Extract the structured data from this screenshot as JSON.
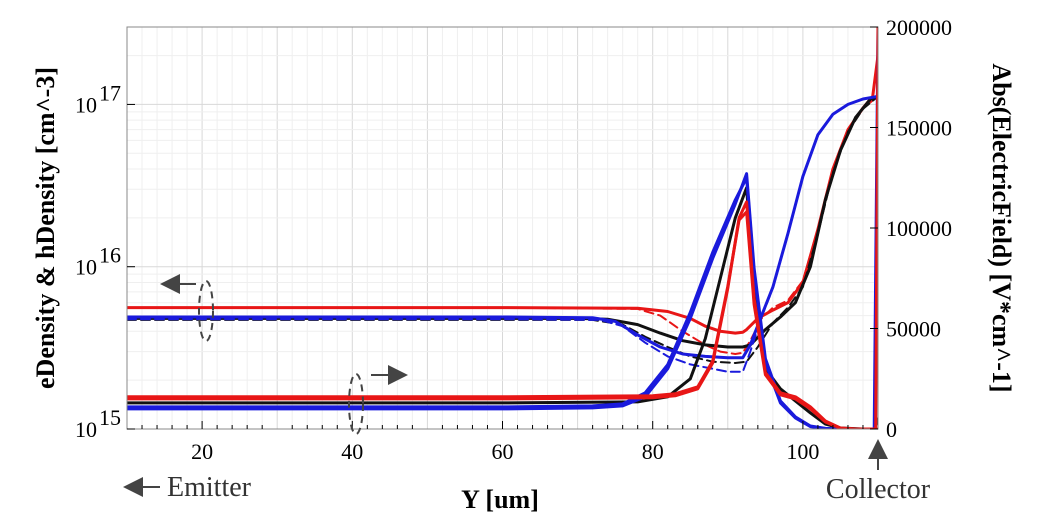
{
  "chart_data": {
    "type": "line",
    "xlabel": "Y [um]",
    "ylabel_left": "eDensity & hDensity [cm^-3]",
    "ylabel_right": "Abs(ElectricField) [V*cm^-1]",
    "xlim": [
      10,
      110
    ],
    "ylim_left_log": [
      1000000000000000.0,
      3e+17
    ],
    "ylim_right": [
      0,
      200000
    ],
    "x_ticks": [
      20,
      40,
      60,
      80,
      100
    ],
    "x_tick_labels": [
      "20",
      "40",
      "60",
      "80",
      "100"
    ],
    "y_left_ticks": [
      {
        "base": "10",
        "exp": "15",
        "value": 1000000000000000.0
      },
      {
        "base": "10",
        "exp": "16",
        "value": 1e+16
      },
      {
        "base": "10",
        "exp": "17",
        "value": 1e+17
      }
    ],
    "y_right_ticks": [
      0,
      50000,
      100000,
      150000,
      200000
    ],
    "y_right_tick_labels": [
      "0",
      "50000",
      "100000",
      "150000",
      "200000"
    ],
    "grid": true,
    "colors": {
      "black": "#111111",
      "blue": "#1a1adc",
      "red": "#e81616",
      "annot": "#444444"
    },
    "series": [
      {
        "name": "density-red-top",
        "color": "#e81616",
        "axis": "left",
        "dash": "solid",
        "x": [
          10,
          60,
          78,
          82,
          85,
          87,
          89,
          91,
          92,
          92.5,
          94,
          96,
          98,
          100,
          102,
          104,
          106,
          108,
          109.3,
          110
        ],
        "y": [
          5600000000000000.0,
          5600000000000000.0,
          5550000000000000.0,
          5300000000000000.0,
          4800000000000000.0,
          4300000000000000.0,
          4000000000000000.0,
          3900000000000000.0,
          3950000000000000.0,
          4100000000000000.0,
          4800000000000000.0,
          5400000000000000.0,
          6000000000000000.0,
          8000000000000000.0,
          1.7e+16,
          4e+16,
          7e+16,
          9.5e+16,
          1.12e+17,
          2e+17
        ]
      },
      {
        "name": "density-red-dash",
        "color": "#e81616",
        "axis": "left",
        "dash": "dashed",
        "x": [
          10,
          60,
          78,
          81,
          84,
          87,
          89,
          91,
          92,
          93,
          94.5,
          96,
          98,
          100,
          102,
          104,
          106,
          108,
          110
        ],
        "y": [
          5600000000000000.0,
          5600000000000000.0,
          5500000000000000.0,
          5000000000000000.0,
          4000000000000000.0,
          3300000000000000.0,
          3000000000000000.0,
          2900000000000000.0,
          2950000000000000.0,
          3500000000000000.0,
          4800000000000000.0,
          5600000000000000.0,
          6200000000000000.0,
          8200000000000000.0,
          1.7e+16,
          4e+16,
          7e+16,
          9.5e+16,
          1.12e+17
        ]
      },
      {
        "name": "density-black",
        "color": "#111111",
        "axis": "left",
        "dash": "solid",
        "x": [
          10,
          60,
          70,
          74,
          78,
          81,
          84,
          87,
          90,
          92,
          93,
          95,
          97,
          99,
          101,
          103,
          105,
          107,
          109,
          110
        ],
        "y": [
          4800000000000000.0,
          4800000000000000.0,
          4800000000000000.0,
          4750000000000000.0,
          4400000000000000.0,
          3900000000000000.0,
          3500000000000000.0,
          3300000000000000.0,
          3200000000000000.0,
          3200000000000000.0,
          3300000000000000.0,
          4100000000000000.0,
          4900000000000000.0,
          6000000000000000.0,
          1e+16,
          2.6e+16,
          5.2e+16,
          8.3e+16,
          1.08e+17,
          1.12e+17
        ]
      },
      {
        "name": "density-black-dash",
        "color": "#111111",
        "axis": "left",
        "dash": "dashed",
        "x": [
          10,
          60,
          72,
          76,
          79,
          82,
          85,
          88,
          91,
          92.5,
          94,
          96,
          98,
          100,
          102,
          104,
          106,
          108,
          110
        ],
        "y": [
          4700000000000000.0,
          4700000000000000.0,
          4700000000000000.0,
          4400000000000000.0,
          3700000000000000.0,
          3200000000000000.0,
          2800000000000000.0,
          2600000000000000.0,
          2550000000000000.0,
          2600000000000000.0,
          3200000000000000.0,
          4500000000000000.0,
          5600000000000000.0,
          7500000000000000.0,
          1.6e+16,
          3.8e+16,
          6.8e+16,
          9.4e+16,
          1.12e+17
        ]
      },
      {
        "name": "density-blue",
        "color": "#1a1adc",
        "axis": "left",
        "dash": "solid",
        "x": [
          10,
          60,
          72,
          75,
          78,
          81,
          84,
          87,
          90,
          92,
          93,
          94.5,
          96,
          98,
          100,
          102,
          104,
          106,
          108,
          110
        ],
        "y": [
          4900000000000000.0,
          4900000000000000.0,
          4850000000000000.0,
          4600000000000000.0,
          3800000000000000.0,
          3200000000000000.0,
          2900000000000000.0,
          2800000000000000.0,
          2750000000000000.0,
          2750000000000000.0,
          3300000000000000.0,
          5000000000000000.0,
          7500000000000000.0,
          1.6e+16,
          3.6e+16,
          6.5e+16,
          8.7e+16,
          1e+17,
          1.08e+17,
          1.12e+17
        ]
      },
      {
        "name": "density-blue-dash",
        "color": "#1a1adc",
        "axis": "left",
        "dash": "dashed",
        "x": [
          10,
          60,
          73,
          76,
          79,
          82,
          85,
          88,
          90,
          92,
          93,
          94.5,
          96,
          98,
          100,
          102,
          104,
          106,
          108,
          110
        ],
        "y": [
          4750000000000000.0,
          4750000000000000.0,
          4700000000000000.0,
          4300000000000000.0,
          3400000000000000.0,
          2800000000000000.0,
          2500000000000000.0,
          2350000000000000.0,
          2250000000000000.0,
          2250000000000000.0,
          3000000000000000.0,
          4900000000000000.0,
          7400000000000000.0,
          1.58e+16,
          3.6e+16,
          6.5e+16,
          8.7e+16,
          1e+17,
          1.08e+17,
          1.12e+17
        ]
      },
      {
        "name": "efield-black",
        "color": "#111111",
        "axis": "right",
        "dash": "solid",
        "x": [
          10,
          60,
          78,
          82,
          85,
          87,
          89,
          91,
          92.5,
          93.5,
          95,
          97,
          99,
          101,
          103,
          105,
          108,
          109.5,
          110
        ],
        "y": [
          13000,
          13000,
          13500,
          16000,
          25000,
          45000,
          75000,
          105000,
          120000,
          70000,
          30000,
          20000,
          14000,
          8000,
          2500,
          500,
          0,
          0,
          5000
        ]
      },
      {
        "name": "efield-blue",
        "color": "#1a1adc",
        "axis": "right",
        "dash": "solid",
        "x": [
          10,
          60,
          72,
          76,
          79,
          82,
          85,
          88,
          91,
          92.5,
          93.5,
          95,
          97,
          99,
          101,
          103,
          105,
          108,
          109.5,
          110
        ],
        "y": [
          10000,
          10000,
          10500,
          11500,
          16000,
          30000,
          55000,
          85000,
          112000,
          127000,
          80000,
          35000,
          14000,
          6000,
          1500,
          300,
          0,
          0,
          0,
          200000
        ]
      },
      {
        "name": "efield-blue-2",
        "color": "#1a1adc",
        "axis": "right",
        "dash": "solid",
        "x": [
          10,
          60,
          72,
          76,
          79,
          82,
          85,
          88,
          91,
          92.5,
          93.5,
          95,
          97,
          99,
          101,
          103,
          105,
          108,
          110
        ],
        "y": [
          11000,
          11000,
          11500,
          12500,
          18000,
          32000,
          58000,
          88000,
          114000,
          125000,
          78000,
          33000,
          13000,
          5500,
          1200,
          200,
          0,
          0,
          0
        ]
      },
      {
        "name": "efield-red",
        "color": "#e81616",
        "axis": "right",
        "dash": "solid",
        "x": [
          10,
          60,
          80,
          83,
          86,
          88,
          90,
          91.5,
          92.5,
          93.5,
          95,
          97,
          99,
          101,
          103,
          105,
          107,
          109,
          109.7,
          110
        ],
        "y": [
          15000,
          15000,
          15500,
          16500,
          20000,
          33000,
          70000,
          105000,
          113000,
          65000,
          28000,
          18000,
          16000,
          11000,
          4000,
          500,
          0,
          0,
          0,
          200000
        ]
      },
      {
        "name": "efield-red-2",
        "color": "#e81616",
        "axis": "right",
        "dash": "solid",
        "x": [
          10,
          60,
          80,
          83,
          86,
          88,
          90,
          91.5,
          92.5,
          93.5,
          95,
          97,
          99,
          101,
          103,
          105,
          107,
          109,
          110
        ],
        "y": [
          16000,
          16000,
          16500,
          17500,
          21000,
          34000,
          71000,
          104000,
          108000,
          62000,
          27000,
          17000,
          15000,
          10000,
          3500,
          400,
          0,
          0,
          0
        ]
      }
    ],
    "annotations": {
      "emitter": "Emitter",
      "collector": "Collector"
    }
  }
}
